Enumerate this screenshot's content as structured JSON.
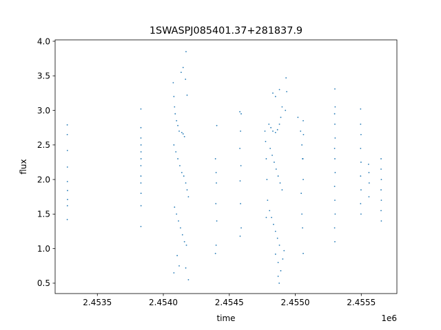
{
  "chart_data": {
    "type": "scatter",
    "title": "1SWASPJ085401.37+281837.9",
    "xlabel": "time",
    "ylabel": "flux",
    "x_offset_label": "1e6",
    "xlim": [
      2453180,
      2455770
    ],
    "ylim": [
      0.35,
      4.02
    ],
    "x_ticks": [
      2453500,
      2454000,
      2454500,
      2455000,
      2455500
    ],
    "x_tick_labels": [
      "2.4535",
      "2.4540",
      "2.4545",
      "2.4550",
      "2.4555"
    ],
    "y_ticks": [
      0.5,
      1.0,
      1.5,
      2.0,
      2.5,
      3.0,
      3.5,
      4.0
    ],
    "y_tick_labels": [
      "0.5",
      "1.0",
      "1.5",
      "2.0",
      "2.5",
      "3.0",
      "3.5",
      "4.0"
    ],
    "grid": false,
    "legend": "none",
    "marker_color": "#1f77b4",
    "series": [
      {
        "points": [
          [
            2453272,
            2.79
          ],
          [
            2453272,
            2.65
          ],
          [
            2453273,
            2.42
          ],
          [
            2453273,
            2.18
          ],
          [
            2453273,
            1.97
          ],
          [
            2453274,
            1.84
          ],
          [
            2453274,
            1.71
          ],
          [
            2453273,
            1.62
          ],
          [
            2453272,
            1.42
          ],
          [
            2453830,
            3.02
          ],
          [
            2453830,
            2.75
          ],
          [
            2453830,
            2.6
          ],
          [
            2453831,
            2.5
          ],
          [
            2453831,
            2.4
          ],
          [
            2453831,
            2.3
          ],
          [
            2453830,
            2.2
          ],
          [
            2453830,
            2.05
          ],
          [
            2453830,
            1.95
          ],
          [
            2453831,
            1.8
          ],
          [
            2453831,
            1.62
          ],
          [
            2453830,
            1.32
          ],
          [
            2454075,
            3.4
          ],
          [
            2454080,
            3.2
          ],
          [
            2454085,
            3.05
          ],
          [
            2454090,
            2.95
          ],
          [
            2454100,
            2.85
          ],
          [
            2454110,
            2.78
          ],
          [
            2454120,
            2.7
          ],
          [
            2454140,
            2.68
          ],
          [
            2454150,
            2.66
          ],
          [
            2454160,
            2.62
          ],
          [
            2454080,
            2.5
          ],
          [
            2454095,
            2.4
          ],
          [
            2454110,
            2.3
          ],
          [
            2454125,
            2.2
          ],
          [
            2454140,
            2.1
          ],
          [
            2454155,
            2.05
          ],
          [
            2454170,
            1.95
          ],
          [
            2454180,
            1.85
          ],
          [
            2454190,
            1.75
          ],
          [
            2454085,
            1.6
          ],
          [
            2454100,
            1.5
          ],
          [
            2454115,
            1.4
          ],
          [
            2454130,
            1.3
          ],
          [
            2454145,
            1.2
          ],
          [
            2454160,
            1.1
          ],
          [
            2454175,
            1.05
          ],
          [
            2454105,
            0.9
          ],
          [
            2454120,
            0.75
          ],
          [
            2454170,
            0.72
          ],
          [
            2454080,
            0.65
          ],
          [
            2454190,
            0.55
          ],
          [
            2454150,
            3.62
          ],
          [
            2454135,
            3.55
          ],
          [
            2454172,
            3.85
          ],
          [
            2454168,
            3.45
          ],
          [
            2454180,
            3.22
          ],
          [
            2454405,
            2.78
          ],
          [
            2454395,
            2.3
          ],
          [
            2454400,
            2.1
          ],
          [
            2454402,
            1.95
          ],
          [
            2454398,
            1.65
          ],
          [
            2454405,
            1.4
          ],
          [
            2454400,
            1.05
          ],
          [
            2454395,
            0.93
          ],
          [
            2454580,
            2.98
          ],
          [
            2454590,
            2.95
          ],
          [
            2454585,
            2.7
          ],
          [
            2454580,
            2.45
          ],
          [
            2454588,
            2.2
          ],
          [
            2454582,
            1.98
          ],
          [
            2454585,
            1.65
          ],
          [
            2454590,
            1.3
          ],
          [
            2454582,
            1.18
          ],
          [
            2454770,
            2.7
          ],
          [
            2454775,
            2.55
          ],
          [
            2454780,
            2.3
          ],
          [
            2454785,
            2.0
          ],
          [
            2454790,
            1.7
          ],
          [
            2454780,
            1.45
          ],
          [
            2454800,
            2.8
          ],
          [
            2454815,
            2.75
          ],
          [
            2454830,
            2.7
          ],
          [
            2454850,
            2.68
          ],
          [
            2454865,
            2.72
          ],
          [
            2454880,
            2.8
          ],
          [
            2454890,
            2.9
          ],
          [
            2454810,
            2.45
          ],
          [
            2454825,
            2.35
          ],
          [
            2454840,
            2.25
          ],
          [
            2454855,
            2.15
          ],
          [
            2454870,
            2.05
          ],
          [
            2454885,
            1.95
          ],
          [
            2454900,
            1.85
          ],
          [
            2454805,
            1.55
          ],
          [
            2454820,
            1.45
          ],
          [
            2454835,
            1.35
          ],
          [
            2454850,
            1.25
          ],
          [
            2454865,
            1.15
          ],
          [
            2454880,
            1.05
          ],
          [
            2454830,
            3.25
          ],
          [
            2454850,
            3.2
          ],
          [
            2454880,
            3.3
          ],
          [
            2454900,
            3.05
          ],
          [
            2454930,
            3.47
          ],
          [
            2454935,
            3.27
          ],
          [
            2454925,
            3.0
          ],
          [
            2454850,
            0.92
          ],
          [
            2454870,
            0.8
          ],
          [
            2454905,
            0.85
          ],
          [
            2454890,
            0.68
          ],
          [
            2454870,
            0.6
          ],
          [
            2454878,
            0.5
          ],
          [
            2454915,
            0.97
          ],
          [
            2455020,
            2.9
          ],
          [
            2455040,
            2.7
          ],
          [
            2455050,
            2.5
          ],
          [
            2455055,
            2.3
          ],
          [
            2455060,
            2.0
          ],
          [
            2455045,
            1.8
          ],
          [
            2455050,
            1.5
          ],
          [
            2455055,
            1.3
          ],
          [
            2455060,
            0.93
          ],
          [
            2455060,
            2.85
          ],
          [
            2455058,
            2.3
          ],
          [
            2455062,
            2.65
          ],
          [
            2455300,
            3.31
          ],
          [
            2455302,
            3.05
          ],
          [
            2455298,
            2.95
          ],
          [
            2455300,
            2.8
          ],
          [
            2455302,
            2.6
          ],
          [
            2455298,
            2.45
          ],
          [
            2455300,
            2.3
          ],
          [
            2455302,
            2.1
          ],
          [
            2455298,
            1.9
          ],
          [
            2455300,
            1.7
          ],
          [
            2455302,
            1.5
          ],
          [
            2455298,
            1.3
          ],
          [
            2455300,
            1.1
          ],
          [
            2455495,
            3.02
          ],
          [
            2455495,
            2.8
          ],
          [
            2455498,
            2.65
          ],
          [
            2455495,
            2.45
          ],
          [
            2455498,
            2.25
          ],
          [
            2455495,
            2.05
          ],
          [
            2455498,
            1.85
          ],
          [
            2455495,
            1.65
          ],
          [
            2455498,
            1.5
          ],
          [
            2455555,
            2.22
          ],
          [
            2455558,
            2.1
          ],
          [
            2455560,
            1.95
          ],
          [
            2455558,
            1.75
          ],
          [
            2455650,
            2.3
          ],
          [
            2455650,
            2.15
          ],
          [
            2455652,
            2.0
          ],
          [
            2455650,
            1.85
          ],
          [
            2455652,
            1.7
          ],
          [
            2455650,
            1.55
          ],
          [
            2455652,
            1.4
          ]
        ]
      }
    ]
  }
}
